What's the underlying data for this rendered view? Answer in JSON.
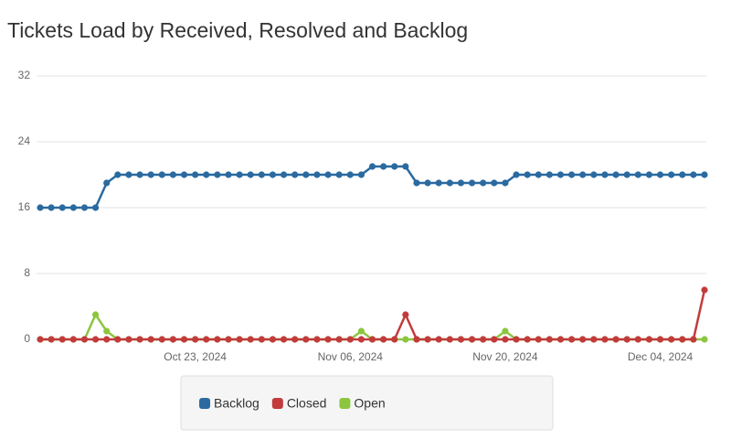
{
  "chart_data": {
    "type": "line",
    "title": "Tickets Load by Received, Resolved and Backlog",
    "x": [
      "2024-10-09",
      "2024-10-10",
      "2024-10-11",
      "2024-10-12",
      "2024-10-13",
      "2024-10-14",
      "2024-10-15",
      "2024-10-16",
      "2024-10-17",
      "2024-10-18",
      "2024-10-19",
      "2024-10-20",
      "2024-10-21",
      "2024-10-22",
      "2024-10-23",
      "2024-10-24",
      "2024-10-25",
      "2024-10-26",
      "2024-10-27",
      "2024-10-28",
      "2024-10-29",
      "2024-10-30",
      "2024-10-31",
      "2024-11-01",
      "2024-11-02",
      "2024-11-03",
      "2024-11-04",
      "2024-11-05",
      "2024-11-06",
      "2024-11-07",
      "2024-11-08",
      "2024-11-09",
      "2024-11-10",
      "2024-11-11",
      "2024-11-12",
      "2024-11-13",
      "2024-11-14",
      "2024-11-15",
      "2024-11-16",
      "2024-11-17",
      "2024-11-18",
      "2024-11-19",
      "2024-11-20",
      "2024-11-21",
      "2024-11-22",
      "2024-11-23",
      "2024-11-24",
      "2024-11-25",
      "2024-11-26",
      "2024-11-27",
      "2024-11-28",
      "2024-11-29",
      "2024-11-30",
      "2024-12-01",
      "2024-12-02",
      "2024-12-03",
      "2024-12-04",
      "2024-12-05",
      "2024-12-06",
      "2024-12-07",
      "2024-12-08"
    ],
    "series": [
      {
        "name": "Backlog",
        "color": "#2a6aa0",
        "values": [
          16,
          16,
          16,
          16,
          16,
          16,
          19,
          20,
          20,
          20,
          20,
          20,
          20,
          20,
          20,
          20,
          20,
          20,
          20,
          20,
          20,
          20,
          20,
          20,
          20,
          20,
          20,
          20,
          20,
          20,
          21,
          21,
          21,
          21,
          19,
          19,
          19,
          19,
          19,
          19,
          19,
          19,
          19,
          20,
          20,
          20,
          20,
          20,
          20,
          20,
          20,
          20,
          20,
          20,
          20,
          20,
          20,
          20,
          20,
          20,
          20
        ]
      },
      {
        "name": "Closed",
        "color": "#c23b3b",
        "values": [
          0,
          0,
          0,
          0,
          0,
          0,
          0,
          0,
          0,
          0,
          0,
          0,
          0,
          0,
          0,
          0,
          0,
          0,
          0,
          0,
          0,
          0,
          0,
          0,
          0,
          0,
          0,
          0,
          0,
          0,
          0,
          0,
          0,
          3,
          0,
          0,
          0,
          0,
          0,
          0,
          0,
          0,
          0,
          0,
          0,
          0,
          0,
          0,
          0,
          0,
          0,
          0,
          0,
          0,
          0,
          0,
          0,
          0,
          0,
          0,
          6
        ]
      },
      {
        "name": "Open",
        "color": "#8cc63f",
        "values": [
          0,
          0,
          0,
          0,
          0,
          3,
          1,
          0,
          0,
          0,
          0,
          0,
          0,
          0,
          0,
          0,
          0,
          0,
          0,
          0,
          0,
          0,
          0,
          0,
          0,
          0,
          0,
          0,
          0,
          1,
          0,
          0,
          0,
          0,
          0,
          0,
          0,
          0,
          0,
          0,
          0,
          0,
          1,
          0,
          0,
          0,
          0,
          0,
          0,
          0,
          0,
          0,
          0,
          0,
          0,
          0,
          0,
          0,
          0,
          0,
          0
        ]
      }
    ],
    "xlim": [
      "2024-10-09",
      "2024-12-08"
    ],
    "xticks": [
      {
        "value": "2024-10-23",
        "label": "Oct 23, 2024"
      },
      {
        "value": "2024-11-06",
        "label": "Nov 06, 2024"
      },
      {
        "value": "2024-11-20",
        "label": "Nov 20, 2024"
      },
      {
        "value": "2024-12-04",
        "label": "Dec 04, 2024"
      }
    ],
    "ylim": [
      0,
      32
    ],
    "yticks": [
      0,
      8,
      16,
      24,
      32
    ],
    "grid": true
  }
}
